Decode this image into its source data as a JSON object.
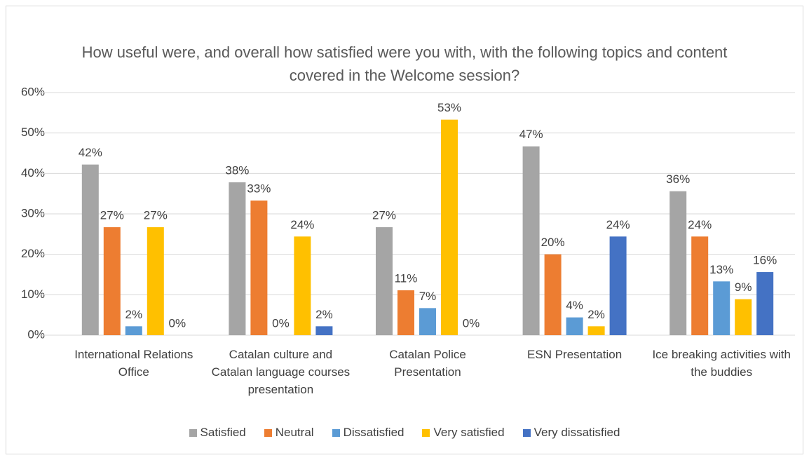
{
  "chart_data": {
    "type": "bar",
    "title": "How useful were, and overall how satisfied were you with, with the following topics and content covered in the Welcome session?",
    "categories": [
      "International Relations Office",
      "Catalan culture and Catalan language courses presentation",
      "Catalan Police Presentation",
      "ESN Presentation",
      "Ice breaking activities with the buddies"
    ],
    "series": [
      {
        "name": "Satisfied",
        "color": "#a5a5a5",
        "values": [
          42.2,
          37.8,
          26.7,
          46.7,
          35.6
        ],
        "value_labels": [
          "42%",
          "38%",
          "27%",
          "47%",
          "36%"
        ]
      },
      {
        "name": "Neutral",
        "color": "#ed7d31",
        "values": [
          26.7,
          33.3,
          11.1,
          20.0,
          24.4
        ],
        "value_labels": [
          "27%",
          "33%",
          "11%",
          "20%",
          "24%"
        ]
      },
      {
        "name": "Dissatisfied",
        "color": "#5b9bd5",
        "values": [
          2.2,
          0,
          6.7,
          4.4,
          13.3
        ],
        "value_labels": [
          "2%",
          "0%",
          "7%",
          "4%",
          "13%"
        ]
      },
      {
        "name": "Very satisfied",
        "color": "#ffc000",
        "values": [
          26.7,
          24.4,
          53.3,
          2.2,
          8.9
        ],
        "value_labels": [
          "27%",
          "24%",
          "53%",
          "2%",
          "9%"
        ]
      },
      {
        "name": "Very dissatisfied",
        "color": "#4472c4",
        "values": [
          0,
          2.2,
          0,
          24.4,
          15.6
        ],
        "value_labels": [
          "0%",
          "2%",
          "0%",
          "24%",
          "16%"
        ]
      }
    ],
    "ylim": [
      0,
      60
    ],
    "yticks": [
      {
        "value": 0,
        "label": "0%"
      },
      {
        "value": 10,
        "label": "10%"
      },
      {
        "value": 20,
        "label": "20%"
      },
      {
        "value": 30,
        "label": "30%"
      },
      {
        "value": 40,
        "label": "40%"
      },
      {
        "value": 50,
        "label": "50%"
      },
      {
        "value": 60,
        "label": "60%"
      }
    ],
    "grid": true,
    "legend": "bottom"
  }
}
